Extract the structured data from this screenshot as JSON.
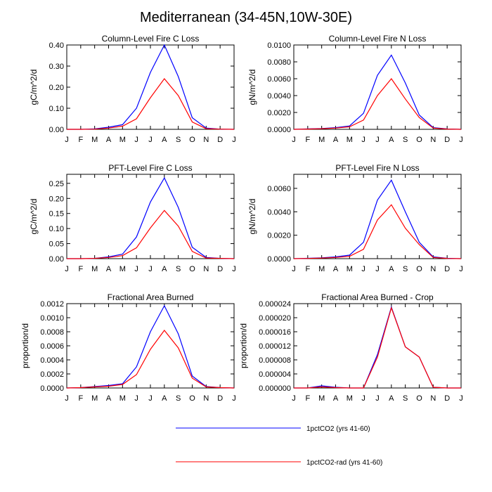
{
  "figure_title": "Mediterranean (34-45N,10W-30E)",
  "colors": {
    "blue": "#0000ff",
    "red": "#ff0000",
    "axis": "#000000"
  },
  "legend": [
    {
      "label": "1pctCO2 (yrs 41-60)",
      "color": "#0000ff"
    },
    {
      "label": "1pctCO2-rad (yrs 41-60)",
      "color": "#ff0000"
    }
  ],
  "chart_data": [
    {
      "type": "line",
      "title": "Column-Level Fire C Loss",
      "ylabel": "gC/m^2/d",
      "xlabel": "",
      "categories": [
        "J",
        "F",
        "M",
        "A",
        "M",
        "J",
        "J",
        "A",
        "S",
        "O",
        "N",
        "D",
        "J"
      ],
      "ylim": [
        0,
        0.4
      ],
      "yticks": [
        "0.00",
        "0.10",
        "0.20",
        "0.30",
        "0.40"
      ],
      "yticks_values": [
        0,
        0.1,
        0.2,
        0.3,
        0.4
      ],
      "series": [
        {
          "name": "1pctCO2 (yrs 41-60)",
          "color": "#0000ff",
          "values": [
            0,
            0,
            0.002,
            0.01,
            0.022,
            0.1,
            0.27,
            0.4,
            0.25,
            0.055,
            0.006,
            0.001,
            0
          ]
        },
        {
          "name": "1pctCO2-rad (yrs 41-60)",
          "color": "#ff0000",
          "values": [
            0,
            0,
            0.001,
            0.006,
            0.015,
            0.05,
            0.15,
            0.24,
            0.16,
            0.035,
            0.003,
            0.001,
            0
          ]
        }
      ]
    },
    {
      "type": "line",
      "title": "Column-Level Fire N Loss",
      "ylabel": "gN/m^2/d",
      "xlabel": "",
      "categories": [
        "J",
        "F",
        "M",
        "A",
        "M",
        "J",
        "J",
        "A",
        "S",
        "O",
        "N",
        "D",
        "J"
      ],
      "ylim": [
        0,
        0.01
      ],
      "yticks": [
        "0.0000",
        "0.0020",
        "0.0040",
        "0.0060",
        "0.0080",
        "0.0100"
      ],
      "yticks_values": [
        0,
        0.002,
        0.004,
        0.006,
        0.008,
        0.01
      ],
      "series": [
        {
          "name": "1pctCO2 (yrs 41-60)",
          "color": "#0000ff",
          "values": [
            0,
            5e-05,
            0.0001,
            0.0002,
            0.0004,
            0.0019,
            0.0064,
            0.0088,
            0.0055,
            0.0017,
            0.0002,
            5e-05,
            0
          ]
        },
        {
          "name": "1pctCO2-rad (yrs 41-60)",
          "color": "#ff0000",
          "values": [
            0,
            3e-05,
            7e-05,
            0.00015,
            0.0003,
            0.0011,
            0.004,
            0.006,
            0.0036,
            0.0014,
            0.00015,
            3e-05,
            0
          ]
        }
      ]
    },
    {
      "type": "line",
      "title": "PFT-Level Fire C Loss",
      "ylabel": "gC/m^2/d",
      "xlabel": "",
      "categories": [
        "J",
        "F",
        "M",
        "A",
        "M",
        "J",
        "J",
        "A",
        "S",
        "O",
        "N",
        "D",
        "J"
      ],
      "ylim": [
        0,
        0.28
      ],
      "yticks": [
        "0.00",
        "0.05",
        "0.10",
        "0.15",
        "0.20",
        "0.25"
      ],
      "yticks_values": [
        0,
        0.05,
        0.1,
        0.15,
        0.2,
        0.25
      ],
      "series": [
        {
          "name": "1pctCO2 (yrs 41-60)",
          "color": "#0000ff",
          "values": [
            0,
            0,
            0.001,
            0.006,
            0.015,
            0.072,
            0.188,
            0.268,
            0.17,
            0.038,
            0.004,
            0.001,
            0
          ]
        },
        {
          "name": "1pctCO2-rad (yrs 41-60)",
          "color": "#ff0000",
          "values": [
            0,
            0,
            0.001,
            0.004,
            0.01,
            0.036,
            0.102,
            0.16,
            0.108,
            0.024,
            0.002,
            0.001,
            0
          ]
        }
      ]
    },
    {
      "type": "line",
      "title": "PFT-Level Fire N Loss",
      "ylabel": "gN/m^2/d",
      "xlabel": "",
      "categories": [
        "J",
        "F",
        "M",
        "A",
        "M",
        "J",
        "J",
        "A",
        "S",
        "O",
        "N",
        "D",
        "J"
      ],
      "ylim": [
        0,
        0.0072
      ],
      "yticks": [
        "0.0000",
        "0.0020",
        "0.0040",
        "0.0060"
      ],
      "yticks_values": [
        0,
        0.002,
        0.004,
        0.006
      ],
      "series": [
        {
          "name": "1pctCO2 (yrs 41-60)",
          "color": "#0000ff",
          "values": [
            0,
            3e-05,
            7e-05,
            0.00015,
            0.0003,
            0.0014,
            0.005,
            0.0067,
            0.004,
            0.0014,
            0.00015,
            3e-05,
            0
          ]
        },
        {
          "name": "1pctCO2-rad (yrs 41-60)",
          "color": "#ff0000",
          "values": [
            0,
            2e-05,
            5e-05,
            0.0001,
            0.0002,
            0.0008,
            0.0033,
            0.0046,
            0.0026,
            0.0012,
            0.0001,
            2e-05,
            0
          ]
        }
      ]
    },
    {
      "type": "line",
      "title": "Fractional Area Burned",
      "ylabel": "proportion/d",
      "xlabel": "",
      "categories": [
        "J",
        "F",
        "M",
        "A",
        "M",
        "J",
        "J",
        "A",
        "S",
        "O",
        "N",
        "D",
        "J"
      ],
      "ylim": [
        0,
        0.0012
      ],
      "yticks": [
        "0.0000",
        "0.0002",
        "0.0004",
        "0.0006",
        "0.0008",
        "0.0010",
        "0.0012"
      ],
      "yticks_values": [
        0,
        0.0002,
        0.0004,
        0.0006,
        0.0008,
        0.001,
        0.0012
      ],
      "series": [
        {
          "name": "1pctCO2 (yrs 41-60)",
          "color": "#0000ff",
          "values": [
            0,
            5e-06,
            2e-05,
            3.5e-05,
            6e-05,
            0.0003,
            0.0008,
            0.00117,
            0.00077,
            0.00017,
            2e-05,
            5e-06,
            0
          ]
        },
        {
          "name": "1pctCO2-rad (yrs 41-60)",
          "color": "#ff0000",
          "values": [
            0,
            5e-06,
            1.5e-05,
            2.5e-05,
            5e-05,
            0.00019,
            0.00055,
            0.00082,
            0.00057,
            0.00014,
            1.5e-05,
            5e-06,
            0
          ]
        }
      ]
    },
    {
      "type": "line",
      "title": "Fractional Area Burned - Crop",
      "ylabel": "proportion/d",
      "xlabel": "",
      "categories": [
        "J",
        "F",
        "M",
        "A",
        "M",
        "J",
        "J",
        "A",
        "S",
        "O",
        "N",
        "D",
        "J"
      ],
      "ylim": [
        0,
        2.4e-05
      ],
      "yticks": [
        "0.000000",
        "0.000004",
        "0.000008",
        "0.000012",
        "0.000016",
        "0.000020",
        "0.000024"
      ],
      "yticks_values": [
        0,
        4e-06,
        8e-06,
        1.2e-05,
        1.6e-05,
        2e-05,
        2.4e-05
      ],
      "series": [
        {
          "name": "1pctCO2 (yrs 41-60)",
          "color": "#0000ff",
          "values": [
            0,
            0,
            6e-07,
            2e-07,
            0,
            0,
            9.5e-06,
            2.3e-05,
            1.17e-05,
            8.8e-06,
            2e-07,
            0,
            0
          ]
        },
        {
          "name": "1pctCO2-rad (yrs 41-60)",
          "color": "#ff0000",
          "values": [
            0,
            0,
            3e-07,
            1e-07,
            0,
            0,
            8.8e-06,
            2.28e-05,
            1.17e-05,
            8.8e-06,
            2e-07,
            0,
            0
          ]
        }
      ]
    }
  ]
}
